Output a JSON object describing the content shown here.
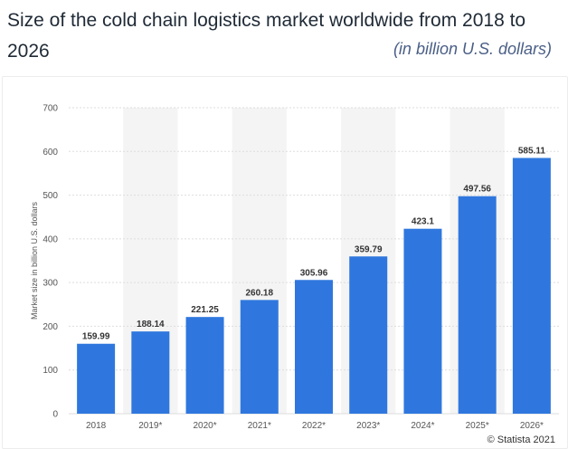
{
  "title": "Size of the cold chain logistics market worldwide from 2018 to 2026",
  "subtitle": "(in billion U.S. dollars)",
  "credit": "© Statista 2021",
  "colors": {
    "bar": "#2f77de",
    "band": "#f4f4f4",
    "grid": "#dddddd"
  },
  "chart_data": {
    "type": "bar",
    "categories": [
      "2018",
      "2019*",
      "2020*",
      "2021*",
      "2022*",
      "2023*",
      "2024*",
      "2025*",
      "2026*"
    ],
    "values": [
      159.99,
      188.14,
      221.25,
      260.18,
      305.96,
      359.79,
      423.1,
      497.56,
      585.11
    ],
    "value_labels": [
      "159.99",
      "188.14",
      "221.25",
      "260.18",
      "305.96",
      "359.79",
      "423.1",
      "497.56",
      "585.11"
    ],
    "ylabel": "Market size in billion U.S. dollars",
    "ylim": [
      0,
      700
    ],
    "yticks": [
      0,
      100,
      200,
      300,
      400,
      500,
      600,
      700
    ],
    "grid": true,
    "alternating_bands": true
  }
}
